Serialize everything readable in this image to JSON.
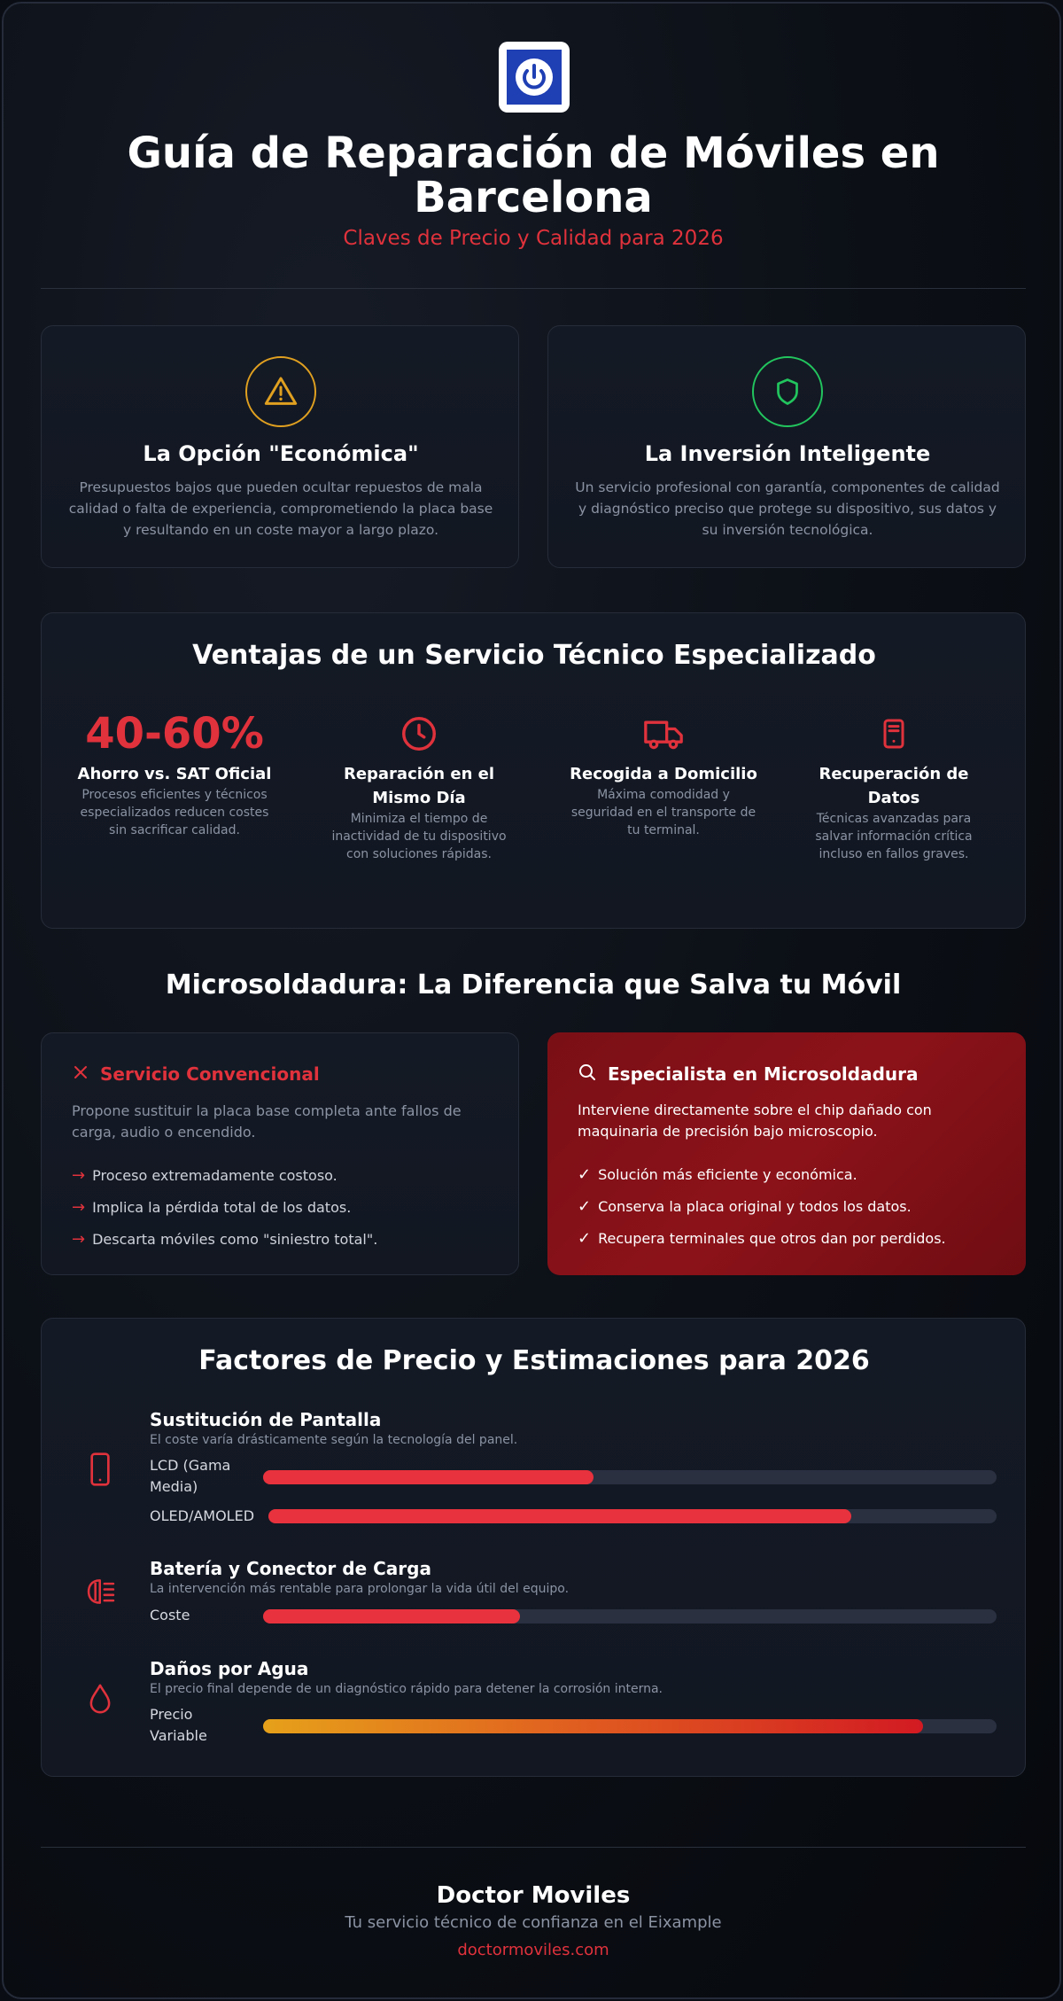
{
  "header": {
    "logo_icon": "power-icon",
    "title": "Guía de Reparación de Móviles en Barcelona",
    "subtitle": "Claves de Precio y Calidad para 2026"
  },
  "options": [
    {
      "icon": "warning-icon",
      "icon_color": "#e0a020",
      "title": "La Opción \"Económica\"",
      "text": "Presupuestos bajos que pueden ocultar repuestos de mala calidad o falta de experiencia, comprometiendo la placa base y resultando en un coste mayor a largo plazo."
    },
    {
      "icon": "shield-icon",
      "icon_color": "#22c55e",
      "title": "La Inversión Inteligente",
      "text": "Un servicio profesional con garantía, componentes de calidad y diagnóstico preciso que protege su dispositivo, sus datos y su inversión tecnológica."
    }
  ],
  "advantages": {
    "title": "Ventajas de un Servicio Técnico Especializado",
    "items": [
      {
        "value": "40-60%",
        "title": "Ahorro vs. SAT Oficial",
        "text": "Procesos eficientes y técnicos especializados reducen costes sin sacrificar calidad."
      },
      {
        "icon": "clock-icon",
        "title": "Reparación en el Mismo Día",
        "text": "Minimiza el tiempo de inactividad de tu dispositivo con soluciones rápidas."
      },
      {
        "icon": "truck-icon",
        "title": "Recogida a Domicilio",
        "text": "Máxima comodidad y seguridad en el transporte de tu terminal."
      },
      {
        "icon": "device-icon",
        "title": "Recuperación de Datos",
        "text": "Técnicas avanzadas para salvar información crítica incluso en fallos graves."
      }
    ]
  },
  "microsoldering": {
    "title": "Microsoldadura: La Diferencia que Salva tu Móvil",
    "conventional": {
      "icon": "x-icon",
      "title": "Servicio Convencional",
      "text": "Propone sustituir la placa base completa ante fallos de carga, audio o encendido.",
      "points": [
        "Proceso extremadamente costoso.",
        "Implica la pérdida total de los datos.",
        "Descarta móviles como \"siniestro total\"."
      ]
    },
    "specialist": {
      "icon": "search-icon",
      "title": "Especialista en Microsoldadura",
      "text": "Interviene directamente sobre el chip dañado con maquinaria de precisión bajo microscopio.",
      "points": [
        "Solución más eficiente y económica.",
        "Conserva la placa original y todos los datos.",
        "Recupera terminales que otros dan por perdidos."
      ]
    }
  },
  "pricing": {
    "title": "Factores de Precio y Estimaciones para 2026",
    "factors": [
      {
        "icon": "phone-icon",
        "title": "Sustitución de Pantalla",
        "desc": "El coste varía drásticamente según la tecnología del panel.",
        "bars": [
          {
            "label": "LCD (Gama Media)",
            "value": 0.45
          },
          {
            "label": "OLED/AMOLED",
            "value": 0.8
          }
        ]
      },
      {
        "icon": "headlight-icon",
        "title": "Batería y Conector de Carga",
        "desc": "La intervención más rentable para prolongar la vida útil del equipo.",
        "bars": [
          {
            "label": "Coste",
            "value": 0.35
          }
        ]
      },
      {
        "icon": "water-drop-icon",
        "title": "Daños por Agua",
        "desc": "El precio final depende de un diagnóstico rápido para detener la corrosión interna.",
        "bars": [
          {
            "label": "Precio Variable",
            "value": 0.9
          }
        ]
      }
    ]
  },
  "footer": {
    "title": "Doctor Moviles",
    "subtitle": "Tu servicio técnico de confianza en el Eixample",
    "link": "doctormoviles.com"
  },
  "colors": {
    "accent": "#e0323c",
    "warning": "#e0a020",
    "success": "#22c55e",
    "specialist_bg": "#7a0f16"
  }
}
